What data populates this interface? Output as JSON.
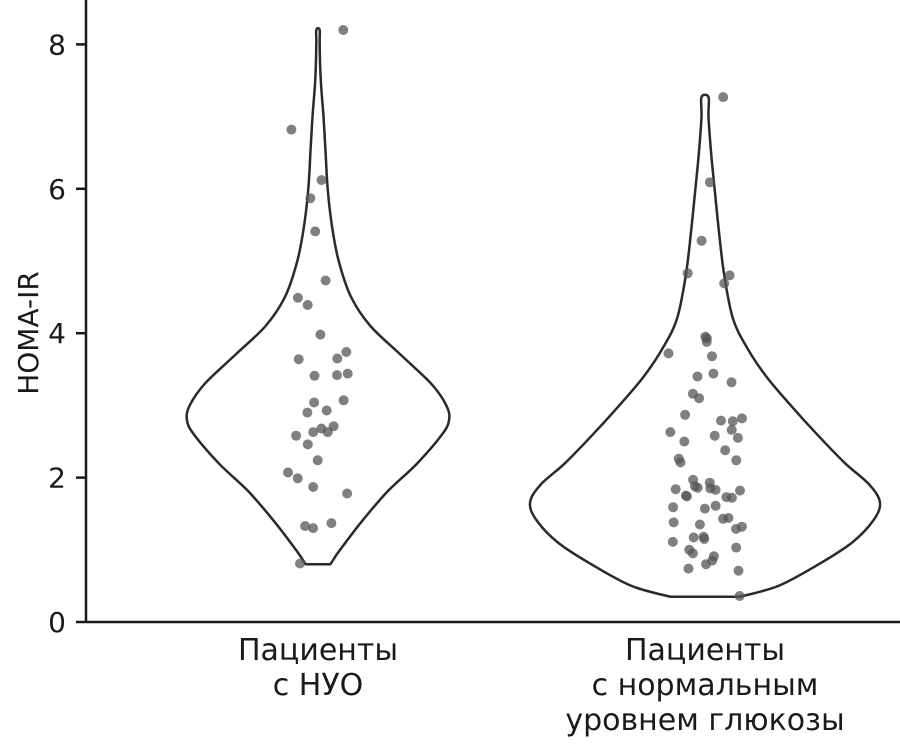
{
  "chart_data": {
    "type": "violin",
    "ylabel": "HOMA-IR",
    "xlabel": "",
    "title": "",
    "ylim": [
      0,
      8.6
    ],
    "yticks": [
      "0",
      "2",
      "4",
      "6",
      "8"
    ],
    "grid": false,
    "legend": "none",
    "colors": {
      "outline": "#2a2a2a",
      "point": "#555555",
      "axis": "#1a1a1a"
    },
    "groups": [
      {
        "label_lines": [
          "Пациенты",
          "с НУО"
        ],
        "range": [
          0.8,
          8.2
        ],
        "density_profile": [
          [
            0.8,
            0.09
          ],
          [
            1.0,
            0.16
          ],
          [
            1.4,
            0.32
          ],
          [
            1.8,
            0.5
          ],
          [
            2.2,
            0.72
          ],
          [
            2.6,
            0.9
          ],
          [
            2.8,
            0.95
          ],
          [
            3.0,
            0.93
          ],
          [
            3.3,
            0.82
          ],
          [
            3.7,
            0.6
          ],
          [
            4.1,
            0.38
          ],
          [
            4.5,
            0.24
          ],
          [
            5.0,
            0.15
          ],
          [
            5.5,
            0.1
          ],
          [
            6.0,
            0.07
          ],
          [
            6.5,
            0.055
          ],
          [
            7.0,
            0.04
          ],
          [
            7.5,
            0.02
          ],
          [
            8.0,
            0.012
          ],
          [
            8.2,
            0.012
          ]
        ],
        "points": [
          8.2,
          6.82,
          6.12,
          5.87,
          5.41,
          4.73,
          4.49,
          4.39,
          3.98,
          3.74,
          3.65,
          3.64,
          3.44,
          3.42,
          3.41,
          3.07,
          3.04,
          2.93,
          2.9,
          2.71,
          2.68,
          2.63,
          2.63,
          2.58,
          2.46,
          2.24,
          2.07,
          1.99,
          1.87,
          1.78,
          1.37,
          1.33,
          1.3,
          0.81
        ]
      },
      {
        "label_lines": [
          "Пациенты",
          "с нормальным",
          "уровнем глюкозы"
        ],
        "range": [
          0.35,
          7.27
        ],
        "density_profile": [
          [
            0.35,
            0.2
          ],
          [
            0.5,
            0.42
          ],
          [
            0.8,
            0.65
          ],
          [
            1.1,
            0.84
          ],
          [
            1.4,
            0.96
          ],
          [
            1.65,
            1.0
          ],
          [
            1.9,
            0.94
          ],
          [
            2.2,
            0.8
          ],
          [
            2.6,
            0.64
          ],
          [
            3.0,
            0.49
          ],
          [
            3.4,
            0.35
          ],
          [
            3.8,
            0.24
          ],
          [
            4.2,
            0.16
          ],
          [
            4.8,
            0.11
          ],
          [
            5.4,
            0.08
          ],
          [
            6.0,
            0.055
          ],
          [
            6.5,
            0.035
          ],
          [
            7.0,
            0.02
          ],
          [
            7.27,
            0.02
          ]
        ],
        "points": [
          7.27,
          6.09,
          5.28,
          4.83,
          4.8,
          4.69,
          3.95,
          3.93,
          3.88,
          3.72,
          3.68,
          3.44,
          3.4,
          3.32,
          3.16,
          3.1,
          2.87,
          2.82,
          2.79,
          2.78,
          2.66,
          2.63,
          2.58,
          2.55,
          2.5,
          2.38,
          2.26,
          2.24,
          2.21,
          1.97,
          1.93,
          1.88,
          1.86,
          1.85,
          1.84,
          1.83,
          1.82,
          1.75,
          1.74,
          1.73,
          1.72,
          1.61,
          1.59,
          1.57,
          1.44,
          1.43,
          1.38,
          1.35,
          1.32,
          1.29,
          1.18,
          1.17,
          1.15,
          1.11,
          1.03,
          1.0,
          0.95,
          0.91,
          0.85,
          0.8,
          0.74,
          0.71,
          0.36
        ]
      }
    ]
  }
}
